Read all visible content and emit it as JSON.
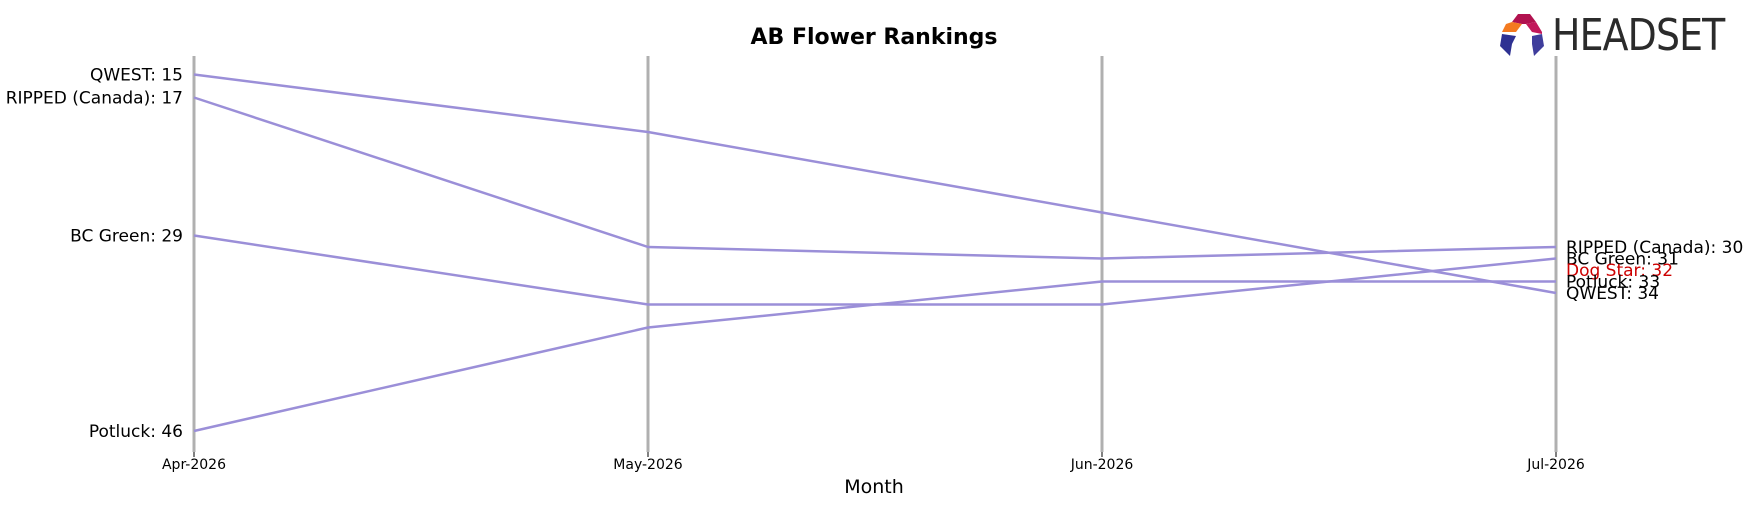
{
  "chart_data": {
    "type": "line",
    "title": "AB Flower Rankings",
    "xlabel": "Month",
    "ylabel": "",
    "categories": [
      "Apr-2026",
      "May-2026",
      "Jun-2026",
      "Jul-2026"
    ],
    "y_inverted": true,
    "ylim": [
      14,
      48
    ],
    "grid": "vertical lines at each month",
    "line_color": "#9b8fd8",
    "series": [
      {
        "name": "QWEST",
        "values": [
          15,
          20,
          27,
          34
        ]
      },
      {
        "name": "RIPPED (Canada)",
        "values": [
          17,
          30,
          31,
          30
        ]
      },
      {
        "name": "BC Green",
        "values": [
          29,
          35,
          35,
          31
        ]
      },
      {
        "name": "Potluck",
        "values": [
          46,
          37,
          33,
          33
        ]
      },
      {
        "name": "Dog Star",
        "values": [
          null,
          null,
          null,
          32
        ]
      }
    ],
    "start_labels": [
      {
        "text": "QWEST: 15",
        "value": 15
      },
      {
        "text": "RIPPED (Canada): 17",
        "value": 17
      },
      {
        "text": "BC Green: 29",
        "value": 29
      },
      {
        "text": "Potluck: 46",
        "value": 46
      }
    ],
    "end_labels": [
      {
        "text": "RIPPED (Canada): 30",
        "value": 30,
        "color": "#000000"
      },
      {
        "text": "BC Green: 31",
        "value": 31,
        "color": "#000000"
      },
      {
        "text": "Dog Star: 32",
        "value": 32,
        "color": "#cc0000"
      },
      {
        "text": "Potluck: 33",
        "value": 33,
        "color": "#000000"
      },
      {
        "text": "QWEST: 34",
        "value": 34,
        "color": "#000000"
      }
    ]
  },
  "logo": {
    "text": "HEADSET",
    "colors": [
      "#e8434b",
      "#b1124f",
      "#f47a20",
      "#c2185b",
      "#2e3192",
      "#3f3d9c"
    ]
  }
}
